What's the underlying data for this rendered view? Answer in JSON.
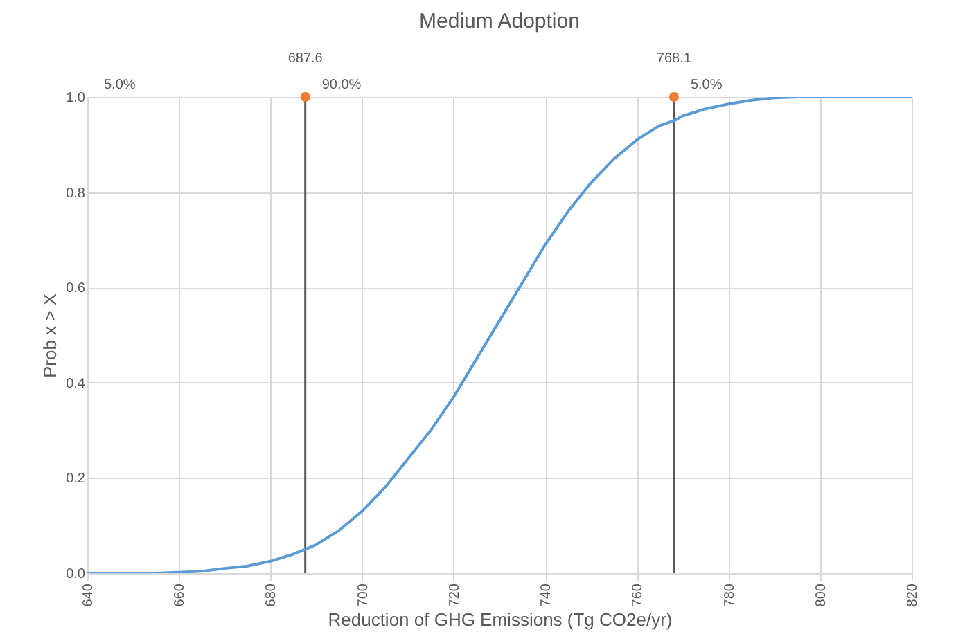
{
  "chart_data": {
    "type": "line",
    "title": "Medium Adoption",
    "xlabel": "Reduction of GHG Emissions (Tg CO2e/yr)",
    "ylabel": "Prob x > X",
    "xlim": [
      640,
      820
    ],
    "xticks": [
      640,
      660,
      680,
      700,
      720,
      740,
      760,
      780,
      800,
      820
    ],
    "ylim": [
      0,
      1
    ],
    "yticks": [
      {
        "value": 0,
        "label": "0.0"
      },
      0.2,
      0.4,
      0.6,
      0.8,
      {
        "value": 1,
        "label": "1.0"
      }
    ],
    "grid": true,
    "legend": false,
    "marker": "none",
    "line_style": "solid",
    "series": [
      {
        "color": "#5b9bd5",
        "x": [
          640,
          655,
          660,
          665,
          670,
          675,
          680,
          685,
          687.6,
          690,
          695,
          700,
          705,
          710,
          715,
          720,
          725,
          730,
          735,
          740,
          745,
          750,
          755,
          760,
          765,
          768.1,
          770,
          775,
          780,
          785,
          790,
          795,
          820
        ],
        "values": [
          0,
          0,
          0.002,
          0.004,
          0.01,
          0.015,
          0.025,
          0.04,
          0.05,
          0.06,
          0.09,
          0.13,
          0.18,
          0.24,
          0.3,
          0.37,
          0.45,
          0.53,
          0.61,
          0.69,
          0.76,
          0.82,
          0.87,
          0.91,
          0.94,
          0.95,
          0.96,
          0.975,
          0.985,
          0.993,
          0.998,
          1.0,
          1.0
        ]
      },
      {
        "type": "scatter",
        "marker": "circle",
        "color": "#ed7d31",
        "x": [
          687.6,
          768.1
        ],
        "values": [
          1,
          1
        ]
      }
    ],
    "ref_lines": [
      {
        "axis": "x",
        "value": 687.6,
        "label": "687.6",
        "color": "#595959",
        "line_style": "solid"
      },
      {
        "axis": "x",
        "value": 768.1,
        "label": "768.1",
        "color": "#595959",
        "line_style": "solid"
      }
    ],
    "annotations": [
      "5.0%",
      "90.0%",
      "5.0%"
    ]
  }
}
